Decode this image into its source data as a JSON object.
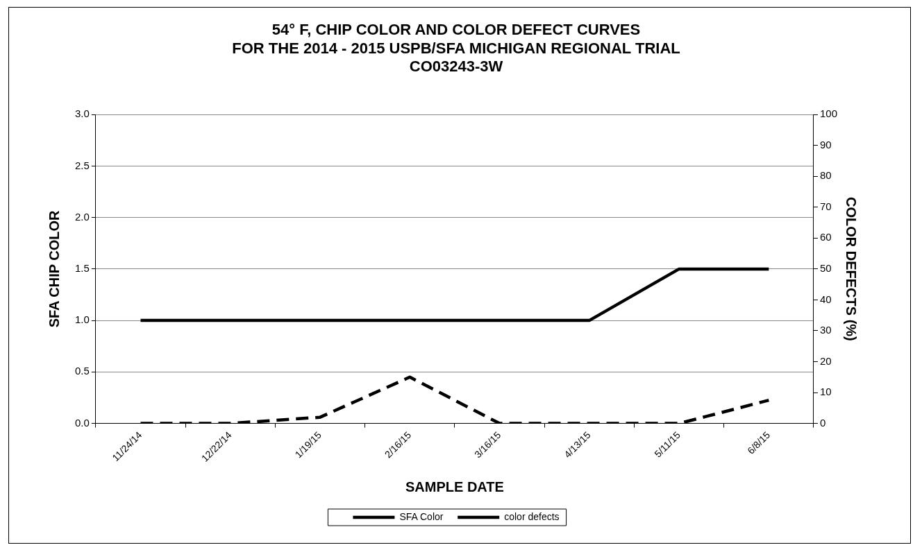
{
  "chart_data": {
    "type": "line",
    "title": [
      "54° F, CHIP COLOR AND COLOR DEFECT CURVES",
      "FOR THE 2014 - 2015 USPB/SFA MICHIGAN REGIONAL TRIAL",
      "CO03243-3W"
    ],
    "xlabel": "SAMPLE DATE",
    "ylabel": "SFA CHIP COLOR",
    "y2label": "COLOR DEFECTS (%)",
    "categories": [
      "11/24/14",
      "12/22/14",
      "1/19/15",
      "2/16/15",
      "3/16/15",
      "4/13/15",
      "5/11/15",
      "6/8/15"
    ],
    "series": [
      {
        "name": "SFA Color",
        "color": "#000000",
        "line_style": "solid",
        "values": [
          1.0,
          1.0,
          1.0,
          1.0,
          1.0,
          1.0,
          1.5,
          1.5
        ]
      },
      {
        "name": "color defects",
        "color": "#000000",
        "line_style": "dashed",
        "axis": "y2",
        "values": [
          0,
          0,
          2,
          15,
          0,
          0,
          0,
          7.5
        ]
      }
    ],
    "ylim": [
      0,
      3
    ],
    "yticks": [
      {
        "value": 0,
        "label": "0.0"
      },
      {
        "value": 0.5,
        "label": "0.5"
      },
      {
        "value": 1,
        "label": "1.0"
      },
      {
        "value": 1.5,
        "label": "1.5"
      },
      {
        "value": 2,
        "label": "2.0"
      },
      {
        "value": 2.5,
        "label": "2.5"
      },
      {
        "value": 3,
        "label": "3.0"
      }
    ],
    "y2lim": [
      0,
      100
    ],
    "y2ticks": [
      0,
      10,
      20,
      30,
      40,
      50,
      60,
      70,
      80,
      90,
      100
    ],
    "grid": "y",
    "legend": "bottom",
    "marker": "none"
  }
}
